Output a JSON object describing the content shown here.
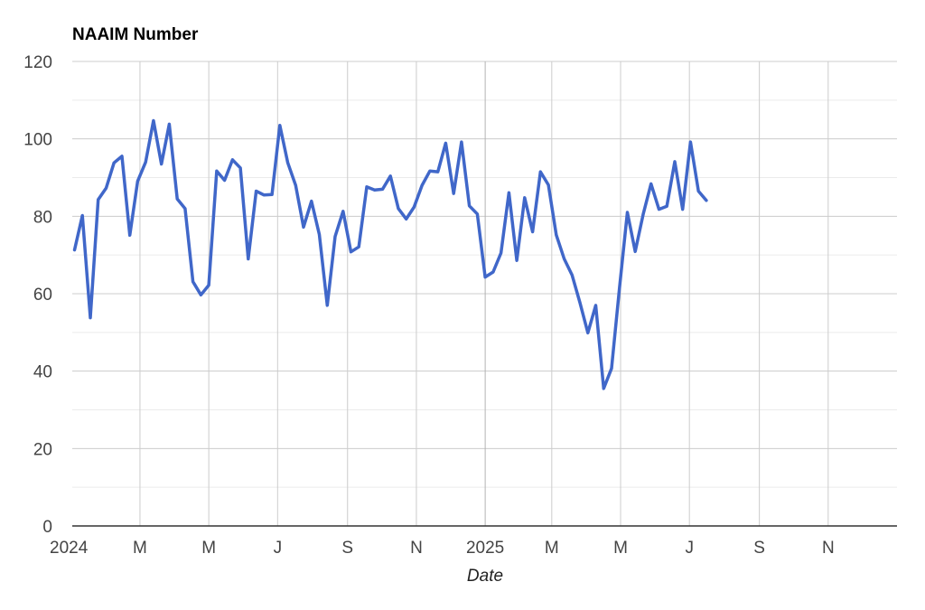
{
  "chart_data": {
    "type": "line",
    "title": "NAAIM Number",
    "xlabel": "Date",
    "ylabel": "",
    "ylim": [
      0,
      120
    ],
    "xlim": [
      "2024-01-01",
      "2025-12-31"
    ],
    "y_ticks": [
      0,
      20,
      40,
      60,
      80,
      100,
      120
    ],
    "x_ticks": [
      {
        "date": "2024-01-01",
        "label": "2024",
        "major": true
      },
      {
        "date": "2024-03-01",
        "label": "M",
        "major": false
      },
      {
        "date": "2024-05-01",
        "label": "M",
        "major": false
      },
      {
        "date": "2024-07-01",
        "label": "J",
        "major": false
      },
      {
        "date": "2024-09-01",
        "label": "S",
        "major": false
      },
      {
        "date": "2024-11-01",
        "label": "N",
        "major": false
      },
      {
        "date": "2025-01-01",
        "label": "2025",
        "major": true
      },
      {
        "date": "2025-03-01",
        "label": "M",
        "major": false
      },
      {
        "date": "2025-05-01",
        "label": "M",
        "major": false
      },
      {
        "date": "2025-07-01",
        "label": "J",
        "major": false
      },
      {
        "date": "2025-09-01",
        "label": "S",
        "major": false
      },
      {
        "date": "2025-11-01",
        "label": "N",
        "major": false
      }
    ],
    "grid": true,
    "legend": "none",
    "line_color": "#4067c9",
    "series": [
      {
        "x": [
          "2024-01-03",
          "2024-01-10",
          "2024-01-17",
          "2024-01-24",
          "2024-01-31",
          "2024-02-07",
          "2024-02-14",
          "2024-02-21",
          "2024-02-28",
          "2024-03-06",
          "2024-03-13",
          "2024-03-20",
          "2024-03-27",
          "2024-04-03",
          "2024-04-10",
          "2024-04-17",
          "2024-04-24",
          "2024-05-01",
          "2024-05-08",
          "2024-05-15",
          "2024-05-22",
          "2024-05-29",
          "2024-06-05",
          "2024-06-12",
          "2024-06-19",
          "2024-06-26",
          "2024-07-03",
          "2024-07-10",
          "2024-07-17",
          "2024-07-24",
          "2024-07-31",
          "2024-08-07",
          "2024-08-14",
          "2024-08-21",
          "2024-08-28",
          "2024-09-04",
          "2024-09-11",
          "2024-09-18",
          "2024-09-25",
          "2024-10-02",
          "2024-10-09",
          "2024-10-16",
          "2024-10-23",
          "2024-10-30",
          "2024-11-06",
          "2024-11-13",
          "2024-11-20",
          "2024-11-27",
          "2024-12-04",
          "2024-12-11",
          "2024-12-18",
          "2024-12-25",
          "2025-01-01",
          "2025-01-08",
          "2025-01-15",
          "2025-01-22",
          "2025-01-29",
          "2025-02-05",
          "2025-02-12",
          "2025-02-19",
          "2025-02-26",
          "2025-03-05",
          "2025-03-12",
          "2025-03-19",
          "2025-03-26",
          "2025-04-02",
          "2025-04-09",
          "2025-04-16",
          "2025-04-23",
          "2025-04-30",
          "2025-05-07",
          "2025-05-14",
          "2025-05-21",
          "2025-05-28",
          "2025-06-04",
          "2025-06-11",
          "2025-06-18",
          "2025-06-25",
          "2025-07-02",
          "2025-07-09",
          "2025-07-16"
        ],
        "values": [
          71.3,
          80.2,
          53.8,
          84.3,
          87.3,
          93.8,
          95.5,
          75.1,
          89.1,
          94.0,
          104.7,
          93.5,
          103.8,
          84.5,
          82.0,
          63.1,
          59.7,
          62.2,
          91.7,
          89.3,
          94.6,
          92.5,
          69.0,
          86.5,
          85.5,
          85.6,
          103.5,
          93.8,
          88.0,
          77.2,
          83.9,
          75.3,
          57.0,
          74.8,
          81.3,
          70.8,
          72.1,
          87.6,
          86.8,
          87.0,
          90.4,
          82.0,
          79.3,
          82.4,
          88.0,
          91.7,
          91.5,
          98.9,
          85.9,
          99.2,
          82.7,
          80.6,
          64.3,
          65.6,
          70.5,
          86.1,
          68.6,
          84.8,
          76.0,
          91.5,
          88.1,
          75.2,
          69.0,
          64.8,
          57.7,
          49.9,
          57.0,
          35.5,
          40.7,
          61.5,
          81.0,
          70.9,
          80.5,
          88.4,
          81.8,
          82.6,
          94.1,
          81.8,
          99.2,
          86.5,
          84.1
        ]
      }
    ]
  }
}
